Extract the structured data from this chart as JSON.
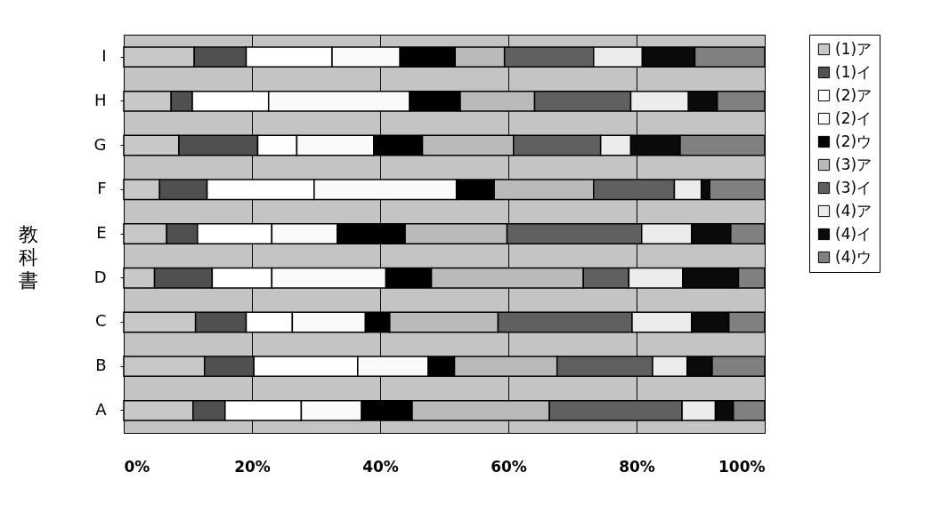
{
  "chart_data": {
    "type": "bar",
    "orientation": "horizontal",
    "stacked": true,
    "ylabel": "教科書",
    "categories": [
      "I",
      "H",
      "G",
      "F",
      "E",
      "D",
      "C",
      "B",
      "A"
    ],
    "xlim": [
      0,
      100
    ],
    "xticks": [
      {
        "value": 0,
        "label": "0%"
      },
      {
        "value": 20,
        "label": "20%"
      },
      {
        "value": 40,
        "label": "40%"
      },
      {
        "value": 60,
        "label": "60%"
      },
      {
        "value": 80,
        "label": "80%"
      },
      {
        "value": 100,
        "label": "100%"
      }
    ],
    "grid": "x",
    "legend": "right",
    "series": [
      {
        "name": "(1)ア",
        "color": "#c8c8c8",
        "values": [
          11.0,
          7.4,
          8.6,
          5.6,
          6.7,
          4.8,
          11.2,
          12.6,
          10.8
        ]
      },
      {
        "name": "(1)イ",
        "color": "#505050",
        "values": [
          8.1,
          3.3,
          12.3,
          7.4,
          4.8,
          9.0,
          7.9,
          7.7,
          5.0
        ]
      },
      {
        "name": "(2)ア",
        "color": "#ffffff",
        "values": [
          13.4,
          11.9,
          6.1,
          16.7,
          11.6,
          9.3,
          7.2,
          16.2,
          11.9
        ]
      },
      {
        "name": "(2)イ",
        "color": "#fafafa",
        "values": [
          10.6,
          22.0,
          12.0,
          22.2,
          10.2,
          17.8,
          11.4,
          11.0,
          9.4
        ]
      },
      {
        "name": "(2)ウ",
        "color": "#000000",
        "values": [
          8.6,
          7.9,
          7.6,
          5.9,
          10.6,
          7.1,
          3.8,
          4.1,
          7.9
        ]
      },
      {
        "name": "(3)ア",
        "color": "#bababa",
        "values": [
          7.7,
          11.6,
          14.2,
          15.5,
          15.9,
          23.7,
          16.9,
          16.0,
          21.4
        ]
      },
      {
        "name": "(3)イ",
        "color": "#606060",
        "values": [
          13.9,
          15.0,
          13.6,
          12.6,
          21.0,
          7.1,
          20.9,
          14.9,
          20.7
        ]
      },
      {
        "name": "(4)ア",
        "color": "#ececec",
        "values": [
          7.6,
          9.0,
          4.7,
          4.2,
          7.8,
          8.4,
          9.3,
          5.4,
          5.2
        ]
      },
      {
        "name": "(4)イ",
        "color": "#0a0a0a",
        "values": [
          8.2,
          4.5,
          7.7,
          1.3,
          6.1,
          8.7,
          5.8,
          3.9,
          2.8
        ]
      },
      {
        "name": "(4)ウ",
        "color": "#808080",
        "values": [
          10.9,
          7.4,
          13.2,
          8.6,
          5.3,
          4.1,
          5.6,
          8.2,
          4.9
        ]
      }
    ]
  }
}
